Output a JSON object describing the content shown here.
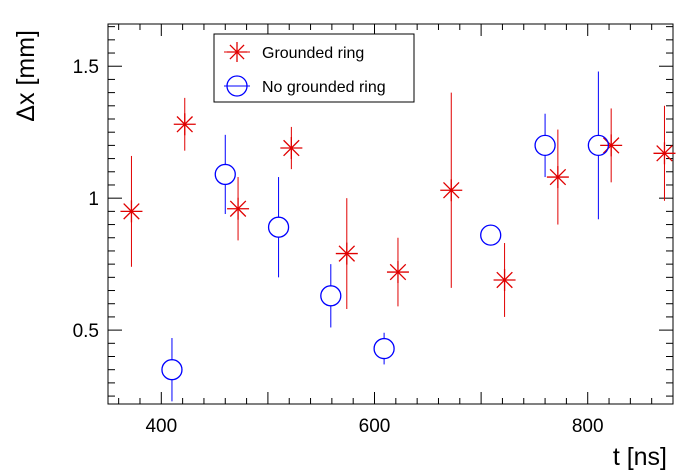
{
  "chart_data": {
    "type": "scatter",
    "title": "",
    "xlabel": "t [ns]",
    "ylabel": "Δx [mm]",
    "xlim": [
      350,
      880
    ],
    "ylim": [
      0.22,
      1.66
    ],
    "xticks": [
      {
        "value": 400,
        "label": "400"
      },
      {
        "value": 600,
        "label": "600"
      },
      {
        "value": 800,
        "label": "800"
      }
    ],
    "yticks": [
      {
        "value": 0.5,
        "label": "0.5"
      },
      {
        "value": 1.0,
        "label": "1"
      },
      {
        "value": 1.5,
        "label": "1.5"
      }
    ],
    "legend_position": "top-left",
    "series": [
      {
        "name": "Grounded ring",
        "color": "#e00000",
        "marker": "asterisk",
        "points": [
          {
            "x": 372,
            "y": 0.95,
            "err": 0.21
          },
          {
            "x": 422,
            "y": 1.28,
            "err": 0.1
          },
          {
            "x": 472,
            "y": 0.96,
            "err": 0.12
          },
          {
            "x": 522,
            "y": 1.19,
            "err": 0.08
          },
          {
            "x": 574,
            "y": 0.79,
            "err": 0.21
          },
          {
            "x": 622,
            "y": 0.72,
            "err": 0.13
          },
          {
            "x": 672,
            "y": 1.03,
            "err": 0.37
          },
          {
            "x": 722,
            "y": 0.69,
            "err": 0.14
          },
          {
            "x": 772,
            "y": 1.08,
            "err": 0.18
          },
          {
            "x": 822,
            "y": 1.2,
            "err": 0.14
          },
          {
            "x": 872,
            "y": 1.17,
            "err": 0.18
          }
        ]
      },
      {
        "name": "No grounded ring",
        "color": "#0000ff",
        "marker": "open-circle",
        "points": [
          {
            "x": 410,
            "y": 0.35,
            "err": 0.12
          },
          {
            "x": 460,
            "y": 1.09,
            "err": 0.15
          },
          {
            "x": 510,
            "y": 0.89,
            "err": 0.19
          },
          {
            "x": 559,
            "y": 0.63,
            "err": 0.12
          },
          {
            "x": 609,
            "y": 0.43,
            "err": 0.06
          },
          {
            "x": 709,
            "y": 0.86,
            "err": 0.0
          },
          {
            "x": 760,
            "y": 1.2,
            "err": 0.12
          },
          {
            "x": 810,
            "y": 1.2,
            "err": 0.28
          }
        ]
      }
    ]
  }
}
